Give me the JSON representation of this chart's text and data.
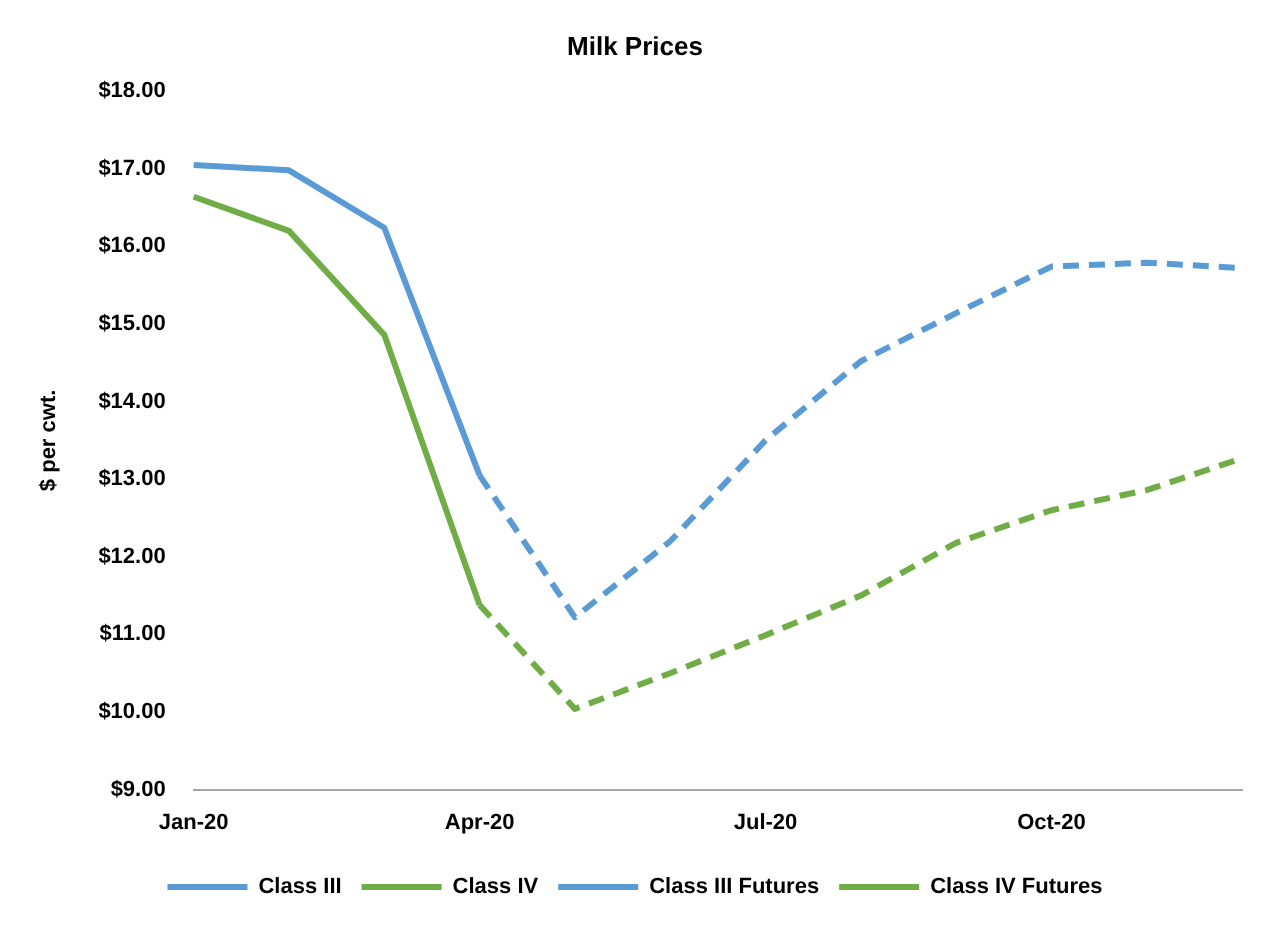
{
  "chart_data": {
    "type": "line",
    "title": "Milk Prices",
    "ylabel": "$ per cwt.",
    "categories": [
      "Jan-20",
      null,
      null,
      "Apr-20",
      null,
      null,
      "Jul-20",
      null,
      null,
      "Oct-20",
      null,
      null
    ],
    "series": [
      {
        "name": "Class III",
        "color": "#5b9bd5",
        "line_style": "solid",
        "values": [
          17.05,
          16.98,
          16.24,
          13.05,
          null,
          null,
          null,
          null,
          null,
          null,
          null,
          null
        ]
      },
      {
        "name": "Class IV",
        "color": "#70ad47",
        "line_style": "solid",
        "values": [
          16.64,
          16.2,
          14.86,
          11.38,
          null,
          null,
          null,
          null,
          null,
          null,
          null,
          null
        ]
      },
      {
        "name": "Class III Futures",
        "color": "#5b9bd5",
        "line_style": "dashed",
        "values": [
          null,
          null,
          null,
          13.05,
          11.22,
          12.2,
          13.5,
          14.52,
          15.14,
          15.74,
          15.79,
          15.72
        ]
      },
      {
        "name": "Class IV Futures",
        "color": "#70ad47",
        "line_style": "dashed",
        "values": [
          null,
          null,
          null,
          11.38,
          10.04,
          10.5,
          10.99,
          11.5,
          12.18,
          12.6,
          12.86,
          13.27
        ]
      }
    ],
    "ylim": [
      9,
      18
    ],
    "yticks": [
      {
        "value": 9,
        "label": "$9.00"
      },
      {
        "value": 10,
        "label": "$10.00"
      },
      {
        "value": 11,
        "label": "$11.00"
      },
      {
        "value": 12,
        "label": "$12.00"
      },
      {
        "value": 13,
        "label": "$13.00"
      },
      {
        "value": 14,
        "label": "$14.00"
      },
      {
        "value": 15,
        "label": "$15.00"
      },
      {
        "value": 16,
        "label": "$16.00"
      },
      {
        "value": 17,
        "label": "$17.00"
      },
      {
        "value": 18,
        "label": "$18.00"
      }
    ],
    "grid": false,
    "legend": "bottom",
    "marker": "none"
  }
}
